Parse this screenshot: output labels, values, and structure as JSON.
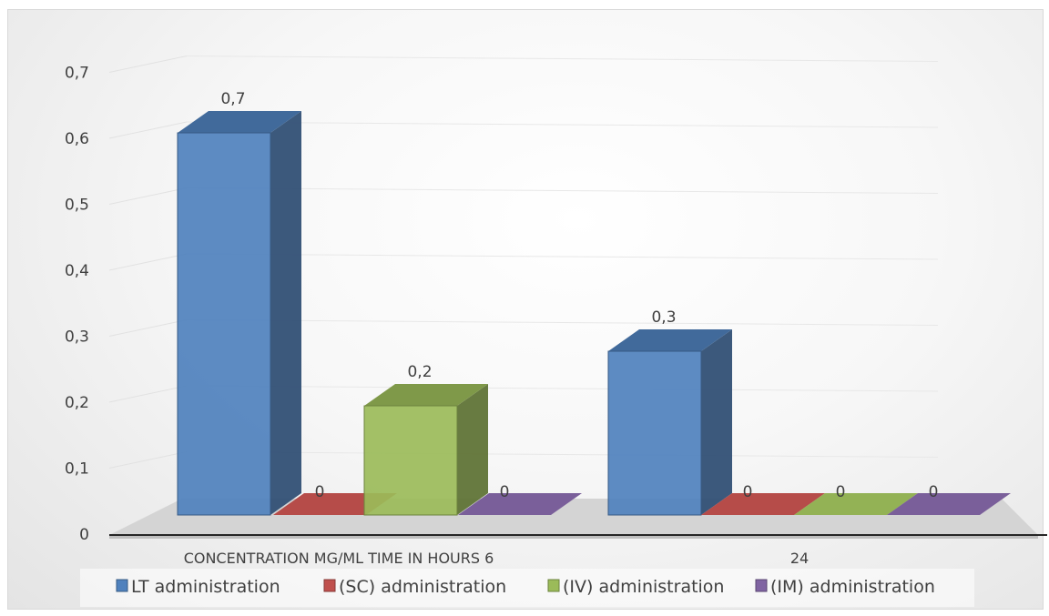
{
  "chart_data": {
    "type": "bar",
    "style": "3d-clustered-column",
    "categories": [
      "CONCENTRATION MG/ML  TIME IN HOURS  6",
      "24"
    ],
    "series": [
      {
        "name": "LT administration",
        "values": [
          0.7,
          0.3
        ],
        "labels": [
          "0,7",
          "0,3"
        ],
        "color": "#4f81bd"
      },
      {
        "name": "(SC) administration",
        "values": [
          0,
          0
        ],
        "labels": [
          "0",
          "0"
        ],
        "color": "#c0504d"
      },
      {
        "name": "(IV) administration",
        "values": [
          0.2,
          0
        ],
        "labels": [
          "0,2",
          "0"
        ],
        "color": "#9bbb59"
      },
      {
        "name": "(IM) administration",
        "values": [
          0,
          0
        ],
        "labels": [
          "0",
          "0"
        ],
        "color": "#8064a2"
      }
    ],
    "yticks": [
      "0",
      "0,1",
      "0,2",
      "0,3",
      "0,4",
      "0,5",
      "0,6",
      "0,7"
    ],
    "ylim": [
      0,
      0.7
    ],
    "grid": true,
    "legend_position": "bottom"
  }
}
